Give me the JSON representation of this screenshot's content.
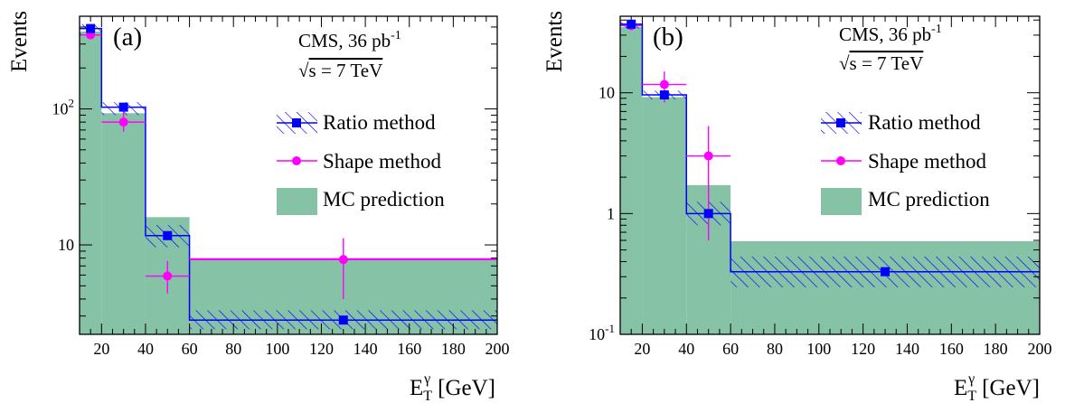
{
  "chart_data": [
    {
      "type": "step",
      "panel_label": "(a)",
      "xlabel": "E_T^γ [GeV]",
      "xlabel_main": "E",
      "xlabel_sub": "T",
      "xlabel_sup": "γ",
      "xlabel_unit": "[GeV]",
      "ylabel": "Events",
      "log_y": true,
      "xlim": [
        10,
        200
      ],
      "ylim": [
        2.2,
        480
      ],
      "x_ticks": [
        20,
        40,
        60,
        80,
        100,
        120,
        140,
        160,
        180,
        200
      ],
      "x_tick_labels": [
        "20",
        "40",
        "60",
        "80",
        "100",
        "120",
        "140",
        "160",
        "180",
        "200"
      ],
      "y_major_ticks": [
        10,
        100
      ],
      "y_tick_labels": [
        "10",
        "10"
      ],
      "y_tick_sups": [
        "",
        "2"
      ],
      "annotation": {
        "experiment": "CMS, 36 pb",
        "lumi_sup": "-1",
        "sqrt_s_radical": "√",
        "sqrt_s_rest": "s = 7 TeV"
      },
      "bins": [
        [
          10,
          20
        ],
        [
          20,
          40
        ],
        [
          40,
          60
        ],
        [
          60,
          200
        ]
      ],
      "series": [
        {
          "name": "MC prediction",
          "kind": "filled-histogram",
          "color": "#86c2a5",
          "values": [
            370,
            93,
            16,
            7.9
          ]
        },
        {
          "name": "Ratio method",
          "kind": "step-with-hatched-band",
          "color": "#0000ff",
          "x": [
            15,
            30,
            50,
            130
          ],
          "values": [
            390,
            103,
            11.7,
            2.8
          ],
          "band_low": [
            350,
            90,
            9.6,
            2.4
          ],
          "band_high": [
            420,
            112,
            14.0,
            3.3
          ]
        },
        {
          "name": "Shape method",
          "kind": "points-with-errors",
          "color": "#ff00ff",
          "x": [
            15,
            30,
            50,
            130
          ],
          "values": [
            350,
            80,
            5.9,
            7.8
          ],
          "err_low": [
            330,
            68,
            4.4,
            4.0
          ],
          "err_high": [
            372,
            98,
            7.6,
            11.2
          ],
          "step_values": [
            null,
            null,
            null,
            7.9
          ]
        }
      ],
      "legend": [
        "Ratio method",
        "Shape method",
        "MC prediction"
      ],
      "legend_position": "right"
    },
    {
      "type": "step",
      "panel_label": "(b)",
      "xlabel": "E_T^γ [GeV]",
      "xlabel_main": "E",
      "xlabel_sub": "T",
      "xlabel_sup": "γ",
      "xlabel_unit": "[GeV]",
      "ylabel": "Events",
      "log_y": true,
      "xlim": [
        10,
        200
      ],
      "ylim": [
        0.1,
        43
      ],
      "x_ticks": [
        20,
        40,
        60,
        80,
        100,
        120,
        140,
        160,
        180,
        200
      ],
      "x_tick_labels": [
        "20",
        "40",
        "60",
        "80",
        "100",
        "120",
        "140",
        "160",
        "180",
        "200"
      ],
      "y_major_ticks": [
        0.1,
        1,
        10
      ],
      "y_tick_labels": [
        "10",
        "1",
        "10"
      ],
      "y_tick_sups": [
        "-1",
        "",
        ""
      ],
      "annotation": {
        "experiment": "CMS, 36 pb",
        "lumi_sup": "-1",
        "sqrt_s_radical": "√",
        "sqrt_s_rest": "s = 7 TeV"
      },
      "bins": [
        [
          10,
          20
        ],
        [
          20,
          40
        ],
        [
          40,
          60
        ],
        [
          60,
          200
        ]
      ],
      "series": [
        {
          "name": "MC prediction",
          "kind": "filled-histogram",
          "color": "#86c2a5",
          "values": [
            35,
            9.2,
            1.72,
            0.59
          ]
        },
        {
          "name": "Ratio method",
          "kind": "step-with-hatched-band",
          "color": "#0000ff",
          "x": [
            15,
            30,
            50,
            130
          ],
          "values": [
            37,
            9.6,
            1.0,
            0.33
          ],
          "band_low": [
            34,
            8.8,
            0.8,
            0.245
          ],
          "band_high": [
            40,
            10.4,
            1.25,
            0.44
          ]
        },
        {
          "name": "Shape method",
          "kind": "points-with-errors",
          "color": "#ff00ff",
          "x": [
            15,
            30,
            50,
            130
          ],
          "values": [
            36,
            11.7,
            3.0,
            null
          ],
          "err_low": [
            33,
            8.3,
            0.6,
            null
          ],
          "err_high": [
            39,
            15.0,
            5.3,
            null
          ]
        }
      ],
      "legend": [
        "Ratio method",
        "Shape method",
        "MC prediction"
      ],
      "legend_position": "right"
    }
  ]
}
